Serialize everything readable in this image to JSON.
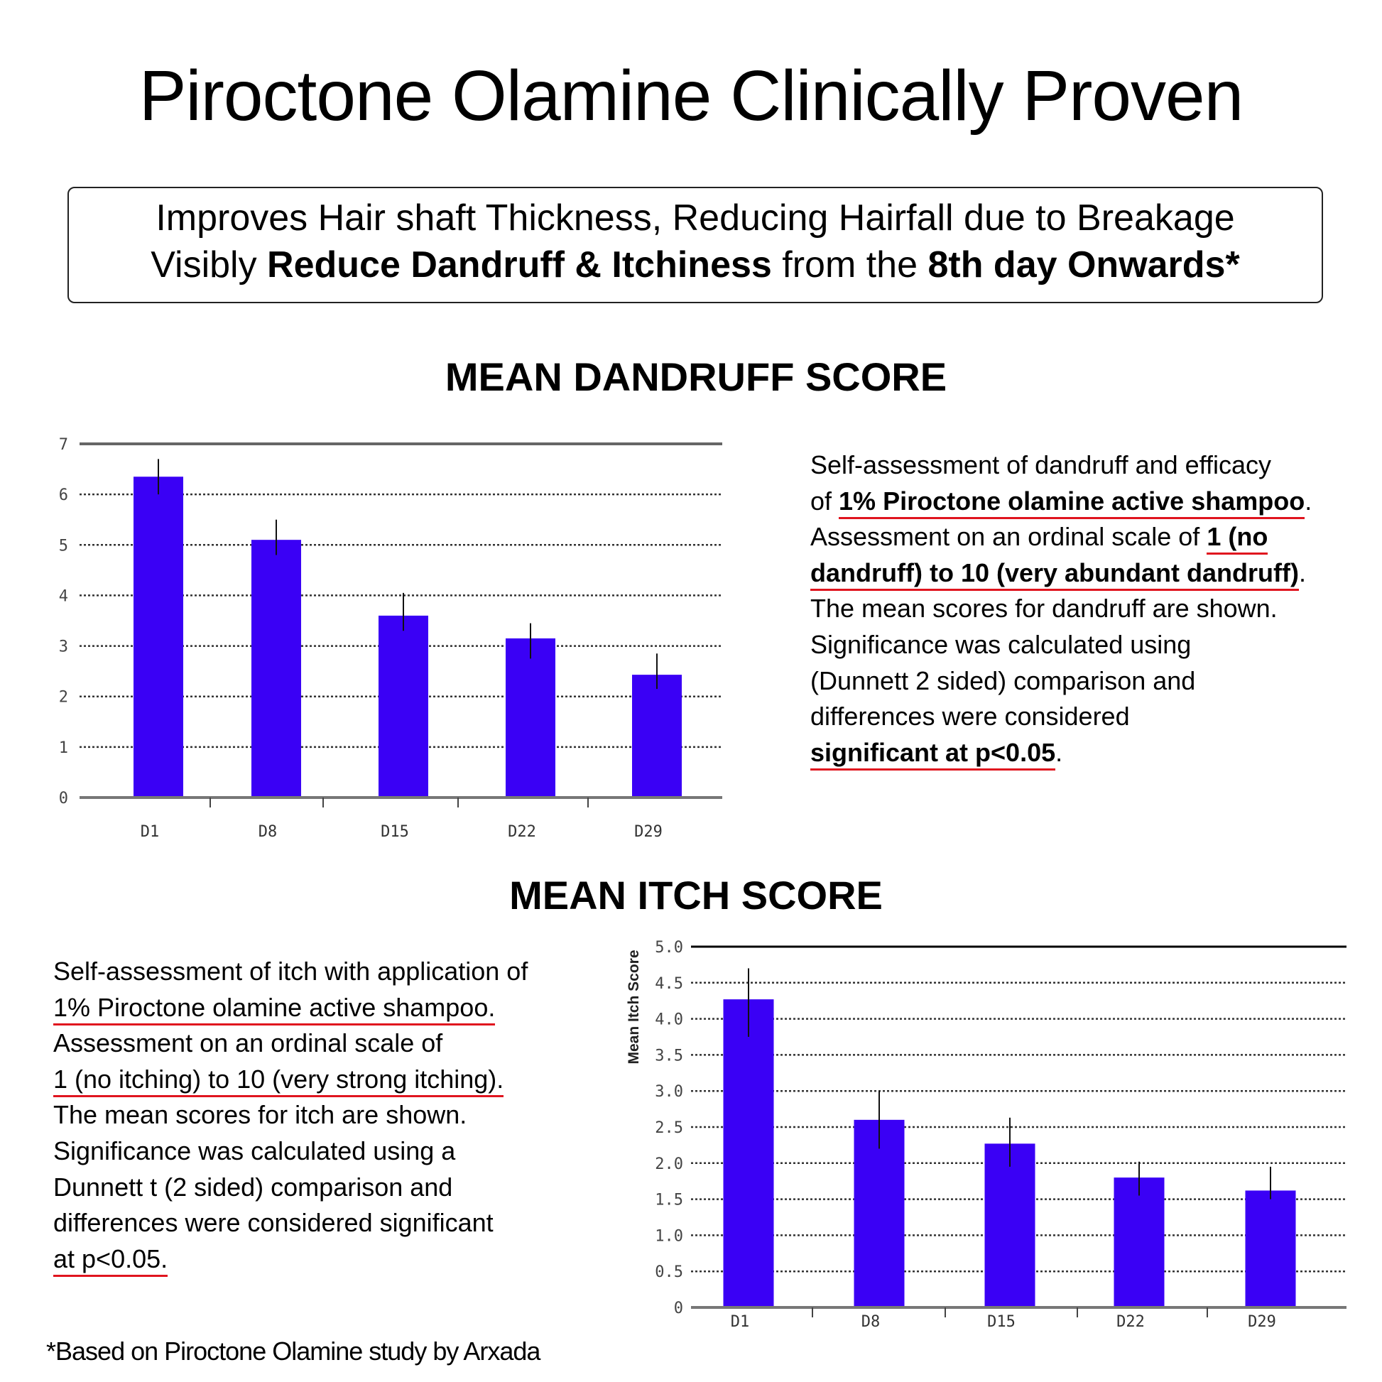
{
  "title": "Piroctone Olamine Clinically Proven",
  "claims": {
    "line1": "Improves Hair shaft Thickness, Reducing Hairfall due to Breakage",
    "line2": [
      {
        "t": "Visibly ",
        "b": false
      },
      {
        "t": "Reduce Dandruff & Itchiness",
        "b": true
      },
      {
        "t": " from the ",
        "b": false
      },
      {
        "t": "8th day Onwards*",
        "b": true
      }
    ]
  },
  "dandruff_text": [
    [
      {
        "t": "Self-assessment of dandruff and efficacy"
      }
    ],
    [
      {
        "t": "of "
      },
      {
        "t": "1% Piroctone olamine active shampoo",
        "b": true,
        "u": true
      },
      {
        "t": "."
      }
    ],
    [
      {
        "t": "Assessment on an ordinal scale of "
      },
      {
        "t": "1 (no",
        "b": true,
        "u": true
      }
    ],
    [
      {
        "t": "dandruff) to 10 (very abundant dandruff)",
        "b": true,
        "u": true
      },
      {
        "t": "."
      }
    ],
    [
      {
        "t": "The mean scores for dandruff are shown."
      }
    ],
    [
      {
        "t": "Significance was calculated using"
      }
    ],
    [
      {
        "t": "(Dunnett 2 sided) comparison and"
      }
    ],
    [
      {
        "t": "differences were considered"
      }
    ],
    [
      {
        "t": "significant at p<0.05",
        "b": true,
        "u": true
      },
      {
        "t": "."
      }
    ]
  ],
  "itch_text": [
    [
      {
        "t": "Self-assessment of itch with application of"
      }
    ],
    [
      {
        "t": "1% Piroctone olamine active shampoo.",
        "u": true
      }
    ],
    [
      {
        "t": "Assessment on an ordinal scale of"
      }
    ],
    [
      {
        "t": "1 (no itching) to 10 (very strong itching).",
        "u": true
      }
    ],
    [
      {
        "t": "The mean scores for itch are shown."
      }
    ],
    [
      {
        "t": "Significance was calculated using a"
      }
    ],
    [
      {
        "t": "Dunnett t (2 sided) comparison and"
      }
    ],
    [
      {
        "t": "differences were considered significant"
      }
    ],
    [
      {
        "t": "at p<0.05.",
        "u": true
      }
    ]
  ],
  "footnote": "*Based on Piroctone Olamine study by Arxada",
  "colors": {
    "bar": "#3a00f5",
    "underline": "#e0141e"
  },
  "chart_data": [
    {
      "type": "bar",
      "title": "MEAN DANDRUFF SCORE",
      "xlabel": "",
      "ylabel": "",
      "categories": [
        "D1",
        "D8",
        "D15",
        "D22",
        "D29"
      ],
      "values": [
        6.35,
        5.1,
        3.6,
        3.15,
        2.43
      ],
      "error_low": [
        6.0,
        4.8,
        3.3,
        2.75,
        2.15
      ],
      "error_high": [
        6.7,
        5.5,
        4.05,
        3.45,
        2.85
      ],
      "ylim": [
        0,
        7
      ],
      "yticks": [
        "0",
        "1",
        "2",
        "3",
        "4",
        "5",
        "6",
        "7"
      ],
      "grid": true
    },
    {
      "type": "bar",
      "title": "MEAN ITCH SCORE",
      "xlabel": "",
      "ylabel": "Mean Itch Score",
      "categories": [
        "D1",
        "D8",
        "D15",
        "D22",
        "D29"
      ],
      "values": [
        4.27,
        2.6,
        2.27,
        1.8,
        1.62
      ],
      "error_low": [
        3.75,
        2.2,
        1.95,
        1.55,
        1.5
      ],
      "error_high": [
        4.7,
        3.0,
        2.63,
        2.02,
        1.95
      ],
      "ylim": [
        0,
        5
      ],
      "yticks": [
        "0",
        "0.5",
        "1.0",
        "1.5",
        "2.0",
        "2.5",
        "3.0",
        "3.5",
        "4.0",
        "4.5",
        "5.0"
      ],
      "grid": true
    }
  ]
}
